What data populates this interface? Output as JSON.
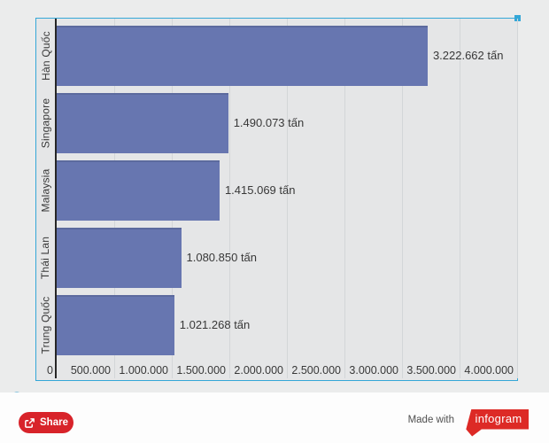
{
  "chart_data": {
    "type": "bar",
    "orientation": "horizontal",
    "categories": [
      "Hàn Quốc",
      "Singapore",
      "Malaysia",
      "Thái Lan",
      "Trung Quốc"
    ],
    "values": [
      3222662,
      1490073,
      1415069,
      1080850,
      1021268
    ],
    "value_labels": [
      "3.222.662 tấn",
      "1.490.073 tấn",
      "1.415.069 tấn",
      "1.080.850 tấn",
      "1.021.268 tấn"
    ],
    "unit": "tấn",
    "x_ticks": [
      "0",
      "500.000",
      "1.000.000",
      "1.500.000",
      "2.000.000",
      "2.500.000",
      "3.000.000",
      "3.500.000",
      "4.000.000"
    ],
    "xlim": [
      0,
      4000000
    ],
    "grid": true,
    "legend": false,
    "bar_color": "#6776b0"
  },
  "refresh": {
    "glyph": "C"
  },
  "footer": {
    "share_label": "Share",
    "made_with_label": "Made with",
    "logo_label": "infogram"
  },
  "colors": {
    "bar": "#6776b0",
    "selection_blue": "#34a7d7",
    "share_red": "#d8232a",
    "logo_red": "#dd2a26",
    "axis_line": "#262626",
    "gridline": "#d3d6d8"
  }
}
